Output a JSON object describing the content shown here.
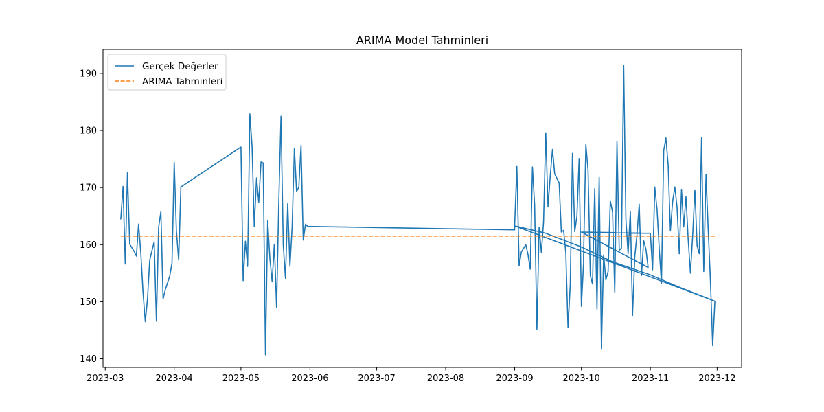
{
  "chart_data": {
    "type": "line",
    "title": "ARIMA Model Tahminleri",
    "xlabel": "",
    "ylabel": "",
    "x_axis_kind": "date",
    "xlim": [
      "2023-02-28",
      "2023-12-12"
    ],
    "ylim": [
      138.5,
      194.2
    ],
    "x_ticks": [
      "2023-03",
      "2023-04",
      "2023-05",
      "2023-06",
      "2023-07",
      "2023-08",
      "2023-09",
      "2023-10",
      "2023-11",
      "2023-12"
    ],
    "y_ticks": [
      140,
      150,
      160,
      170,
      180,
      190
    ],
    "grid": false,
    "legend": "top-left",
    "series": [
      {
        "name": "Gerçek Değerler",
        "color": "#1f77b4",
        "style": "solid",
        "points": [
          [
            "2023-03-08",
            164.5
          ],
          [
            "2023-03-09",
            170.2
          ],
          [
            "2023-03-10",
            156.6
          ],
          [
            "2023-03-11",
            172.6
          ],
          [
            "2023-03-12",
            160.1
          ],
          [
            "2023-03-14",
            158.8
          ],
          [
            "2023-03-15",
            158.0
          ],
          [
            "2023-03-16",
            163.6
          ],
          [
            "2023-03-17",
            158.5
          ],
          [
            "2023-03-18",
            151.6
          ],
          [
            "2023-03-19",
            146.5
          ],
          [
            "2023-03-20",
            150.5
          ],
          [
            "2023-03-21",
            157.3
          ],
          [
            "2023-03-23",
            160.5
          ],
          [
            "2023-03-24",
            146.6
          ],
          [
            "2023-03-25",
            163.0
          ],
          [
            "2023-03-26",
            165.8
          ],
          [
            "2023-03-27",
            150.5
          ],
          [
            "2023-03-28",
            152.1
          ],
          [
            "2023-03-30",
            154.5
          ],
          [
            "2023-03-31",
            156.8
          ],
          [
            "2023-04-01",
            174.4
          ],
          [
            "2023-04-02",
            162.4
          ],
          [
            "2023-04-03",
            157.3
          ],
          [
            "2023-04-04",
            170.1
          ],
          [
            "2023-05-01",
            177.1
          ],
          [
            "2023-05-02",
            153.7
          ],
          [
            "2023-05-03",
            160.6
          ],
          [
            "2023-05-04",
            156.2
          ],
          [
            "2023-05-05",
            182.9
          ],
          [
            "2023-05-06",
            177.2
          ],
          [
            "2023-05-07",
            163.2
          ],
          [
            "2023-05-08",
            171.7
          ],
          [
            "2023-05-09",
            167.4
          ],
          [
            "2023-05-10",
            174.5
          ],
          [
            "2023-05-11",
            174.3
          ],
          [
            "2023-05-12",
            140.7
          ],
          [
            "2023-05-13",
            164.2
          ],
          [
            "2023-05-14",
            157.6
          ],
          [
            "2023-05-15",
            153.5
          ],
          [
            "2023-05-16",
            160.1
          ],
          [
            "2023-05-17",
            149.0
          ],
          [
            "2023-05-18",
            167.5
          ],
          [
            "2023-05-19",
            182.5
          ],
          [
            "2023-05-20",
            160.0
          ],
          [
            "2023-05-21",
            154.1
          ],
          [
            "2023-05-22",
            167.2
          ],
          [
            "2023-05-23",
            156.2
          ],
          [
            "2023-05-24",
            163.0
          ],
          [
            "2023-05-25",
            176.9
          ],
          [
            "2023-05-26",
            169.3
          ],
          [
            "2023-05-27",
            170.1
          ],
          [
            "2023-05-28",
            177.4
          ],
          [
            "2023-05-29",
            160.8
          ],
          [
            "2023-05-30",
            163.6
          ],
          [
            "2023-05-31",
            163.2
          ],
          [
            "2023-09-01",
            162.6
          ],
          [
            "2023-09-01",
            163.4
          ],
          [
            "2023-09-02",
            173.7
          ],
          [
            "2023-09-03",
            156.3
          ],
          [
            "2023-09-04",
            158.7
          ],
          [
            "2023-09-06",
            160.0
          ],
          [
            "2023-09-07",
            158.3
          ],
          [
            "2023-09-08",
            155.7
          ],
          [
            "2023-09-09",
            173.6
          ],
          [
            "2023-09-10",
            166.9
          ],
          [
            "2023-09-11",
            145.2
          ],
          [
            "2023-09-12",
            163.0
          ],
          [
            "2023-09-13",
            158.6
          ],
          [
            "2023-09-14",
            164.0
          ],
          [
            "2023-09-15",
            179.6
          ],
          [
            "2023-09-16",
            166.6
          ],
          [
            "2023-09-17",
            172.0
          ],
          [
            "2023-09-18",
            176.7
          ],
          [
            "2023-09-19",
            172.4
          ],
          [
            "2023-09-21",
            170.8
          ],
          [
            "2023-09-22",
            162.2
          ],
          [
            "2023-09-23",
            162.5
          ],
          [
            "2023-09-24",
            158.6
          ],
          [
            "2023-09-25",
            145.5
          ],
          [
            "2023-09-26",
            153.0
          ],
          [
            "2023-09-27",
            176.0
          ],
          [
            "2023-09-28",
            162.3
          ],
          [
            "2023-09-29",
            165.0
          ],
          [
            "2023-09-30",
            175.1
          ],
          [
            "2023-10-01",
            149.2
          ],
          [
            "2023-10-02",
            156.8
          ],
          [
            "2023-10-02",
            158.1
          ],
          [
            "2023-10-03",
            177.6
          ],
          [
            "2023-10-04",
            173.0
          ],
          [
            "2023-10-05",
            154.6
          ],
          [
            "2023-10-06",
            153.1
          ],
          [
            "2023-10-07",
            169.8
          ],
          [
            "2023-10-08",
            148.7
          ],
          [
            "2023-10-09",
            171.8
          ],
          [
            "2023-10-10",
            141.8
          ],
          [
            "2023-10-11",
            158.2
          ],
          [
            "2023-10-12",
            153.8
          ],
          [
            "2023-10-13",
            155.3
          ],
          [
            "2023-10-14",
            167.7
          ],
          [
            "2023-10-15",
            165.7
          ],
          [
            "2023-10-16",
            151.6
          ],
          [
            "2023-10-17",
            178.1
          ],
          [
            "2023-10-18",
            159.0
          ],
          [
            "2023-10-19",
            159.4
          ],
          [
            "2023-10-20",
            191.4
          ],
          [
            "2023-10-21",
            164.5
          ],
          [
            "2023-10-22",
            158.4
          ],
          [
            "2023-10-23",
            165.8
          ],
          [
            "2023-10-24",
            147.6
          ],
          [
            "2023-10-25",
            158.0
          ],
          [
            "2023-10-26",
            161.8
          ],
          [
            "2023-10-27",
            167.1
          ],
          [
            "2023-10-28",
            154.6
          ],
          [
            "2023-10-29",
            160.7
          ],
          [
            "2023-10-30",
            159.2
          ],
          [
            "2023-10-31",
            156.0
          ],
          [
            "2023-10-01",
            162.2
          ],
          [
            "2023-11-01",
            162.0
          ],
          [
            "2023-11-02",
            155.6
          ],
          [
            "2023-11-03",
            170.1
          ],
          [
            "2023-11-04",
            166.1
          ],
          [
            "2023-11-05",
            159.2
          ],
          [
            "2023-11-06",
            153.2
          ],
          [
            "2023-11-07",
            176.5
          ],
          [
            "2023-11-08",
            178.7
          ],
          [
            "2023-11-09",
            173.9
          ],
          [
            "2023-11-10",
            162.4
          ],
          [
            "2023-11-11",
            167.5
          ],
          [
            "2023-11-12",
            170.1
          ],
          [
            "2023-11-13",
            166.6
          ],
          [
            "2023-11-14",
            158.4
          ],
          [
            "2023-11-15",
            169.7
          ],
          [
            "2023-11-16",
            163.1
          ],
          [
            "2023-11-17",
            168.4
          ],
          [
            "2023-11-18",
            161.0
          ],
          [
            "2023-11-19",
            155.0
          ],
          [
            "2023-11-20",
            161.5
          ],
          [
            "2023-11-21",
            169.6
          ],
          [
            "2023-11-22",
            159.8
          ],
          [
            "2023-11-23",
            158.4
          ],
          [
            "2023-11-24",
            178.8
          ],
          [
            "2023-11-25",
            155.3
          ],
          [
            "2023-11-26",
            172.3
          ],
          [
            "2023-11-27",
            162.6
          ],
          [
            "2023-11-28",
            153.7
          ],
          [
            "2023-11-29",
            142.3
          ],
          [
            "2023-11-30",
            150.1
          ],
          [
            "2023-09-01",
            163.3
          ],
          [
            "2023-09-15",
            162.0
          ],
          [
            "2023-10-01",
            159.6
          ],
          [
            "2023-10-15",
            157.0
          ],
          [
            "2023-11-01",
            154.7
          ],
          [
            "2023-11-15",
            152.4
          ],
          [
            "2023-11-30",
            150.1
          ]
        ]
      },
      {
        "name": "ARIMA Tahminleri",
        "color": "#ff7f0e",
        "style": "dashed",
        "points": [
          [
            "2023-03-08",
            161.5
          ],
          [
            "2023-11-30",
            161.5
          ]
        ]
      }
    ]
  }
}
